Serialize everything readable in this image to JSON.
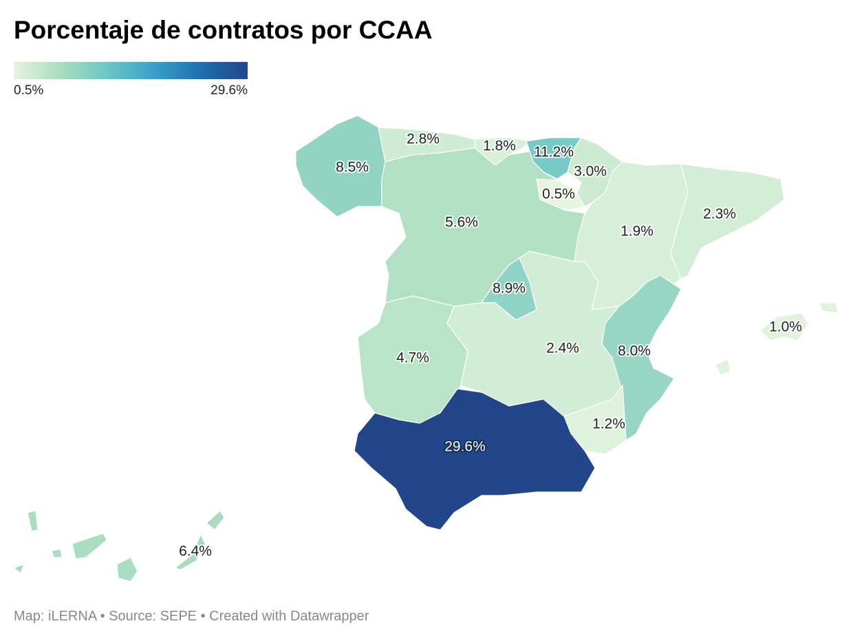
{
  "chart_data": {
    "type": "choropleth",
    "title": "Porcentaje de contratos por CCAA",
    "values": [
      8.5,
      2.8,
      1.8,
      11.2,
      3.0,
      0.5,
      5.6,
      1.9,
      2.3,
      8.9,
      4.7,
      2.4,
      8.0,
      1.0,
      1.2,
      29.6,
      6.4
    ],
    "value_labels": [
      "8.5%",
      "2.8%",
      "1.8%",
      "11.2%",
      "3.0%",
      "0.5%",
      "5.6%",
      "1.9%",
      "2.3%",
      "8.9%",
      "4.7%",
      "2.4%",
      "8.0%",
      "1.0%",
      "1.2%",
      "29.6%",
      "6.4%"
    ],
    "colorscale": {
      "min": 0.5,
      "max": 29.6,
      "min_label": "0.5%",
      "max_label": "29.6%",
      "colors": [
        "#e6f5e0",
        "#a9ddbf",
        "#6cc6c8",
        "#3aa0c8",
        "#1f6fb0",
        "#23468a"
      ]
    }
  },
  "footer": "Map: iLERNA • Source: SEPE • Created with Datawrapper"
}
